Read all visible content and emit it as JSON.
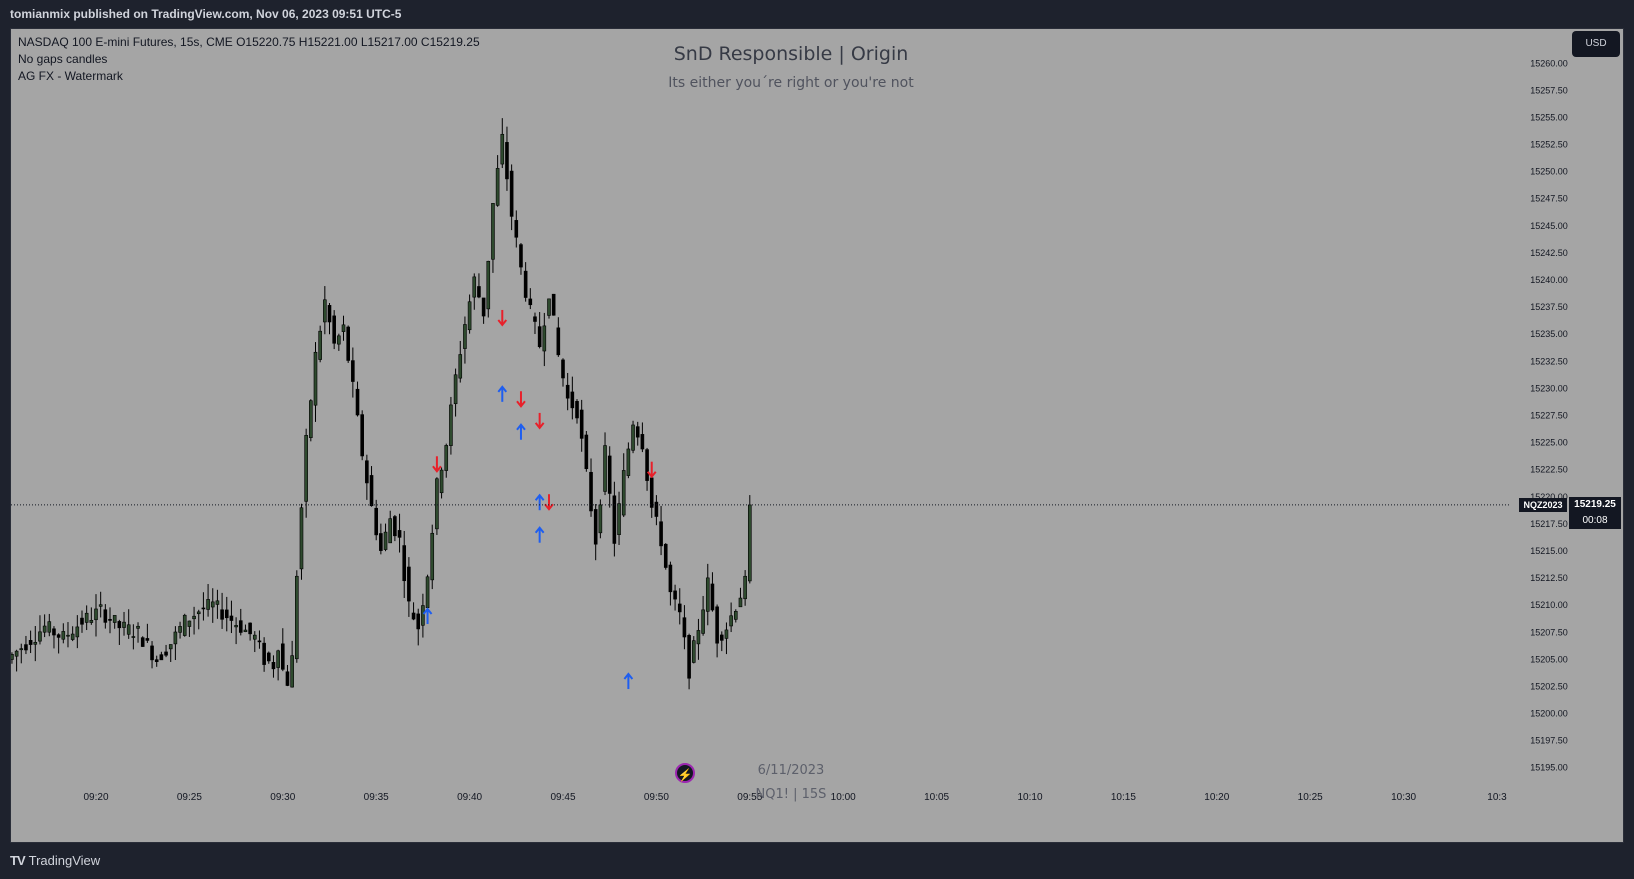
{
  "header": {
    "published_text": "tomianmix published on TradingView.com, Nov 06, 2023 09:51 UTC-5"
  },
  "legend": {
    "line1": "NASDAQ 100 E-mini Futures, 15s, CME  O15220.75  H15221.00  L15217.00  C15219.25",
    "line2": "No gaps candles",
    "line3": "AG FX - Watermark"
  },
  "watermark": {
    "title": "SnD Responsible | Origin",
    "subtitle": "Its either you´re right or you're not",
    "date": "6/11/2023",
    "symbol_tf": "NQ1! | 15S"
  },
  "currency_button": "USD",
  "last_price": {
    "symbol": "NQZ2023",
    "price": "15219.25",
    "countdown": "00:08",
    "value": 15219.25
  },
  "footer": {
    "brand": "TradingView"
  },
  "colors": {
    "chart_bg": "#a5a5a5",
    "up_body": "#2e4a2e",
    "down_body": "#000000",
    "arrow_up": "#1e5ef0",
    "arrow_down": "#e8202a",
    "panel": "#1e222d"
  },
  "chart_data": {
    "type": "candlestick",
    "title": "",
    "yaxis": {
      "ylim": [
        15193.5,
        15261.5
      ],
      "ticks": [
        "15260.00",
        "15257.50",
        "15255.00",
        "15252.50",
        "15250.00",
        "15247.50",
        "15245.00",
        "15242.50",
        "15240.00",
        "15237.50",
        "15235.00",
        "15232.50",
        "15230.00",
        "15227.50",
        "15225.00",
        "15222.50",
        "15220.00",
        "15217.50",
        "15215.00",
        "15212.50",
        "15210.00",
        "15207.50",
        "15205.00",
        "15202.50",
        "15200.00",
        "15197.50",
        "15195.00"
      ]
    },
    "xaxis": {
      "ticks": [
        "09:20",
        "09:25",
        "09:30",
        "09:35",
        "09:40",
        "09:45",
        "09:50",
        "09:55",
        "10:00",
        "10:05",
        "10:10",
        "10:15",
        "10:20",
        "10:25",
        "10:30",
        "10:3"
      ]
    },
    "close_path": [
      [
        "09:15:30",
        15205.0
      ],
      [
        "09:16:30",
        15206.5
      ],
      [
        "09:17:30",
        15208.0
      ],
      [
        "09:18:30",
        15207.0
      ],
      [
        "09:19:30",
        15208.5
      ],
      [
        "09:20:30",
        15209.5
      ],
      [
        "09:21:30",
        15208.0
      ],
      [
        "09:22:30",
        15207.5
      ],
      [
        "09:23:30",
        15205.0
      ],
      [
        "09:24:15",
        15206.5
      ],
      [
        "09:25:00",
        15208.5
      ],
      [
        "09:25:45",
        15209.5
      ],
      [
        "09:26:30",
        15210.0
      ],
      [
        "09:27:15",
        15209.0
      ],
      [
        "09:28:00",
        15208.0
      ],
      [
        "09:28:45",
        15207.0
      ],
      [
        "09:29:15",
        15205.0
      ],
      [
        "09:29:45",
        15204.5
      ],
      [
        "09:30:00",
        15206.5
      ],
      [
        "09:30:15",
        15204.0
      ],
      [
        "09:30:30",
        15203.0
      ],
      [
        "09:30:45",
        15205.0
      ],
      [
        "09:31:00",
        15213.0
      ],
      [
        "09:31:15",
        15219.0
      ],
      [
        "09:31:30",
        15225.0
      ],
      [
        "09:32:00",
        15233.0
      ],
      [
        "09:32:30",
        15238.0
      ],
      [
        "09:33:00",
        15234.0
      ],
      [
        "09:33:30",
        15235.5
      ],
      [
        "09:34:00",
        15230.0
      ],
      [
        "09:34:30",
        15224.0
      ],
      [
        "09:35:00",
        15219.0
      ],
      [
        "09:35:30",
        15215.0
      ],
      [
        "09:36:00",
        15218.0
      ],
      [
        "09:36:30",
        15216.0
      ],
      [
        "09:37:00",
        15210.0
      ],
      [
        "09:37:30",
        15208.0
      ],
      [
        "09:38:00",
        15213.0
      ],
      [
        "09:38:30",
        15221.0
      ],
      [
        "09:39:00",
        15225.0
      ],
      [
        "09:39:30",
        15231.0
      ],
      [
        "09:40:00",
        15236.0
      ],
      [
        "09:40:30",
        15240.0
      ],
      [
        "09:41:00",
        15237.0
      ],
      [
        "09:41:30",
        15247.0
      ],
      [
        "09:42:00",
        15253.0
      ],
      [
        "09:42:30",
        15246.0
      ],
      [
        "09:43:00",
        15241.0
      ],
      [
        "09:43:30",
        15237.0
      ],
      [
        "09:44:00",
        15234.0
      ],
      [
        "09:44:30",
        15239.0
      ],
      [
        "09:45:00",
        15233.0
      ],
      [
        "09:45:30",
        15229.0
      ],
      [
        "09:46:00",
        15228.0
      ],
      [
        "09:46:30",
        15222.0
      ],
      [
        "09:47:00",
        15216.0
      ],
      [
        "09:47:30",
        15224.0
      ],
      [
        "09:48:00",
        15216.0
      ],
      [
        "09:48:30",
        15222.0
      ],
      [
        "09:49:00",
        15227.0
      ],
      [
        "09:49:30",
        15225.0
      ],
      [
        "09:50:00",
        15219.0
      ],
      [
        "09:50:30",
        15216.0
      ],
      [
        "09:51:00",
        15211.0
      ],
      [
        "09:51:30",
        15209.0
      ],
      [
        "09:52:00",
        15204.0
      ],
      [
        "09:52:30",
        15208.0
      ],
      [
        "09:53:00",
        15212.0
      ],
      [
        "09:53:30",
        15207.0
      ],
      [
        "09:54:00",
        15208.0
      ],
      [
        "09:54:30",
        15210.0
      ],
      [
        "09:55:00",
        15212.0
      ],
      [
        "09:55:15",
        15219.25
      ]
    ],
    "signals": [
      {
        "time": "09:37:45",
        "dir": "up",
        "price": 15209.0
      },
      {
        "time": "09:38:15",
        "dir": "down",
        "price": 15223.0
      },
      {
        "time": "09:41:45",
        "dir": "down",
        "price": 15236.5
      },
      {
        "time": "09:41:45",
        "dir": "up",
        "price": 15229.5
      },
      {
        "time": "09:42:45",
        "dir": "down",
        "price": 15229.0
      },
      {
        "time": "09:42:45",
        "dir": "up",
        "price": 15226.0
      },
      {
        "time": "09:43:45",
        "dir": "down",
        "price": 15227.0
      },
      {
        "time": "09:43:45",
        "dir": "up",
        "price": 15219.5
      },
      {
        "time": "09:43:45",
        "dir": "up",
        "price": 15216.5
      },
      {
        "time": "09:44:15",
        "dir": "down",
        "price": 15219.5
      },
      {
        "time": "09:48:30",
        "dir": "up",
        "price": 15203.0
      },
      {
        "time": "09:49:45",
        "dir": "down",
        "price": 15222.5
      }
    ]
  }
}
